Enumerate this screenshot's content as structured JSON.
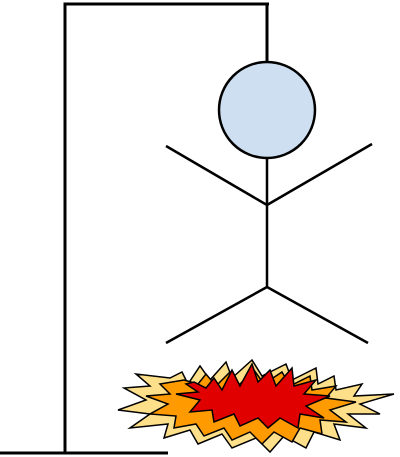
{
  "game": {
    "name": "Hangman",
    "state": "lost",
    "parts_drawn": 6,
    "parts_total": 6,
    "parts": [
      "head",
      "body",
      "left-arm",
      "right-arm",
      "left-leg",
      "right-leg"
    ],
    "effect": "explosion"
  },
  "colors": {
    "stroke": "#000000",
    "head_fill": "#cddff0",
    "burst_outer": "#ffe08a",
    "burst_middle": "#ff9a00",
    "burst_inner": "#e00000",
    "background": "#ffffff"
  }
}
